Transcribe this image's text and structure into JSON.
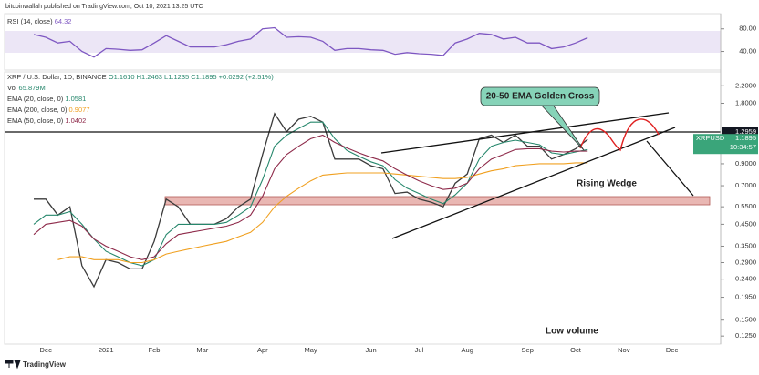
{
  "header": {
    "publisher": "bitcoinwallah published on TradingView.com, Oct 10, 2021 13:25 UTC"
  },
  "chart_data": [
    {
      "type": "line",
      "title": "XRP / U.S. Dollar, 1D, BINANCE",
      "ohlc": "O1.1610 H1.2463 L1.1235 C1.1895 +0.0292 (+2.51%)",
      "volume_label": "Vol",
      "volume_value": "65.879M",
      "log_scale": true,
      "categories": [
        null,
        "Dec",
        null,
        null,
        null,
        null,
        "2021",
        null,
        null,
        null,
        "Feb",
        null,
        null,
        null,
        "Mar",
        null,
        null,
        null,
        null,
        "Apr",
        null,
        null,
        null,
        "May",
        null,
        null,
        null,
        null,
        "Jun",
        null,
        null,
        null,
        "Jul",
        null,
        null,
        null,
        "Aug",
        null,
        null,
        null,
        null,
        "Sep",
        null,
        null,
        null,
        "Oct",
        null,
        null,
        null,
        "Nov",
        null,
        null,
        null,
        "Dec",
        null,
        null
      ],
      "series": [
        {
          "name": "XRPUSD",
          "color": "#3b3b3b",
          "values": [
            0.6,
            0.6,
            0.5,
            0.55,
            0.28,
            0.22,
            0.3,
            0.29,
            0.27,
            0.27,
            0.37,
            0.6,
            0.55,
            0.45,
            0.45,
            0.45,
            0.48,
            0.55,
            0.6,
            1.0,
            1.6,
            1.3,
            1.5,
            1.55,
            1.45,
            0.95,
            0.95,
            0.95,
            0.88,
            0.85,
            0.64,
            0.65,
            0.6,
            0.58,
            0.55,
            0.72,
            0.8,
            1.2,
            1.25,
            1.15,
            1.25,
            1.1,
            1.1,
            0.95,
            1.0,
            1.07,
            1.19,
            null,
            null,
            null,
            null,
            null,
            null,
            null,
            null,
            null
          ]
        },
        {
          "name": "EMA (20, close, 0)",
          "color": "#26876c",
          "last_value": 1.0581,
          "values": [
            0.45,
            0.5,
            0.5,
            0.52,
            0.45,
            0.38,
            0.33,
            0.31,
            0.29,
            0.28,
            0.3,
            0.4,
            0.45,
            0.45,
            0.45,
            0.45,
            0.46,
            0.5,
            0.55,
            0.75,
            1.1,
            1.25,
            1.35,
            1.45,
            1.45,
            1.2,
            1.05,
            0.98,
            0.92,
            0.88,
            0.75,
            0.68,
            0.64,
            0.6,
            0.57,
            0.63,
            0.72,
            0.95,
            1.1,
            1.15,
            1.18,
            1.15,
            1.12,
            1.02,
            1.0,
            1.03,
            1.06,
            null,
            null,
            null,
            null,
            null,
            null,
            null,
            null,
            null
          ]
        },
        {
          "name": "EMA (200, close, 0)",
          "color": "#f0a020",
          "last_value": 0.9077,
          "values": [
            null,
            null,
            0.3,
            0.31,
            0.31,
            0.3,
            0.3,
            0.3,
            0.29,
            0.29,
            0.3,
            0.32,
            0.33,
            0.34,
            0.35,
            0.36,
            0.37,
            0.39,
            0.41,
            0.46,
            0.55,
            0.62,
            0.68,
            0.74,
            0.79,
            0.8,
            0.81,
            0.81,
            0.81,
            0.81,
            0.8,
            0.79,
            0.78,
            0.77,
            0.76,
            0.76,
            0.77,
            0.8,
            0.83,
            0.85,
            0.88,
            0.89,
            0.9,
            0.9,
            0.9,
            0.91,
            0.91,
            null,
            null,
            null,
            null,
            null,
            null,
            null,
            null,
            null
          ]
        },
        {
          "name": "EMA (50, close, 0)",
          "color": "#8e2a4a",
          "last_value": 1.0402,
          "values": [
            0.4,
            0.45,
            0.46,
            0.47,
            0.44,
            0.38,
            0.35,
            0.33,
            0.31,
            0.3,
            0.31,
            0.36,
            0.4,
            0.41,
            0.42,
            0.43,
            0.44,
            0.46,
            0.5,
            0.62,
            0.85,
            1.0,
            1.1,
            1.2,
            1.25,
            1.15,
            1.08,
            1.02,
            0.97,
            0.93,
            0.85,
            0.79,
            0.74,
            0.7,
            0.67,
            0.68,
            0.72,
            0.85,
            0.95,
            1.0,
            1.06,
            1.07,
            1.07,
            1.04,
            1.03,
            1.04,
            1.04,
            null,
            null,
            null,
            null,
            null,
            null,
            null,
            null,
            null
          ]
        }
      ],
      "ylim": [
        0.114,
        2.58
      ],
      "yticks": [
        {
          "value": 2.2,
          "label": "2.2000"
        },
        {
          "value": 1.8,
          "label": "1.8000"
        },
        {
          "value": 0.9,
          "label": "0.9000"
        },
        {
          "value": 0.7,
          "label": "0.7000"
        },
        {
          "value": 0.55,
          "label": "0.5500"
        },
        {
          "value": 0.45,
          "label": "0.4500"
        },
        {
          "value": 0.35,
          "label": "0.3500"
        },
        {
          "value": 0.29,
          "label": "0.2900"
        },
        {
          "value": 0.24,
          "label": "0.2400"
        },
        {
          "value": 0.195,
          "label": "0.1950"
        },
        {
          "value": 0.15,
          "label": "0.1500"
        },
        {
          "value": 0.125,
          "label": "0.1250"
        }
      ],
      "price_line": 1.2959,
      "last_price": {
        "value": 1.1895,
        "countdown": "10:34:57"
      },
      "annotations": [
        "20-50 EMA Golden Cross",
        "Rising Wedge",
        "Low volume"
      ]
    },
    {
      "type": "line",
      "title": "RSI (14, close)",
      "series": [
        {
          "color": "#7e57c2",
          "values": [
            70,
            65,
            55,
            58,
            40,
            30,
            45,
            44,
            42,
            43,
            55,
            68,
            58,
            48,
            48,
            48,
            52,
            58,
            62,
            80,
            82,
            65,
            66,
            65,
            58,
            42,
            45,
            45,
            43,
            42,
            35,
            38,
            36,
            35,
            33,
            55,
            62,
            72,
            70,
            62,
            65,
            55,
            55,
            45,
            48,
            55,
            64.32
          ]
        }
      ],
      "ylim": [
        7,
        107
      ],
      "yticks": [
        {
          "value": 80,
          "label": "80.00"
        },
        {
          "value": 40,
          "label": "40.00"
        }
      ]
    }
  ],
  "footer": {
    "brand": "TradingView"
  }
}
